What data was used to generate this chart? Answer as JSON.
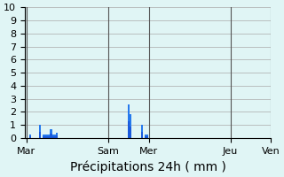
{
  "title": "",
  "xlabel": "Précipitations 24h ( mm )",
  "ylabel": "",
  "background_color": "#e0f5f5",
  "bar_color": "#1a5adc",
  "bar_color2": "#3399ff",
  "grid_color": "#aaaaaa",
  "ylim": [
    0,
    10
  ],
  "yticks": [
    0,
    1,
    2,
    3,
    4,
    5,
    6,
    7,
    8,
    9,
    10
  ],
  "day_labels": [
    "Mar",
    "Sam",
    "Mer",
    "Jeu",
    "Ven"
  ],
  "day_positions": [
    0,
    48,
    72,
    120,
    144
  ],
  "n_bars": 168,
  "bar_values": [
    0,
    0,
    0.3,
    0,
    0,
    0,
    0,
    0,
    1.0,
    0,
    0.3,
    0.3,
    0.3,
    0.3,
    0.7,
    0.7,
    0.3,
    0.3,
    0.4,
    0,
    0,
    0,
    0,
    0,
    0,
    0,
    0,
    0,
    0,
    0,
    0,
    0,
    0,
    0,
    0,
    0,
    0,
    0,
    0,
    0,
    0,
    0,
    0,
    0,
    0,
    0,
    0,
    0,
    0,
    0,
    0,
    0,
    0,
    0,
    0,
    0,
    0,
    0,
    0,
    0,
    2.6,
    1.8,
    0,
    0,
    0,
    0,
    0,
    0,
    1.0,
    0,
    0.3,
    0.3,
    0,
    0,
    0,
    0,
    0,
    0,
    0,
    0,
    0,
    0,
    0,
    0,
    0,
    0,
    0,
    0,
    0,
    0,
    0,
    0,
    0,
    0,
    0,
    0,
    0,
    0,
    0,
    0,
    0,
    0,
    0,
    0,
    0,
    0,
    0,
    0,
    0,
    0,
    0,
    0,
    0,
    0,
    0,
    0,
    0,
    0,
    0,
    0,
    0,
    0,
    0,
    0,
    0,
    0,
    0,
    0,
    0,
    0,
    0,
    0,
    0,
    0,
    0,
    0,
    0,
    0,
    0,
    0,
    0,
    0,
    0,
    0
  ],
  "xlabel_fontsize": 10,
  "tick_fontsize": 8
}
